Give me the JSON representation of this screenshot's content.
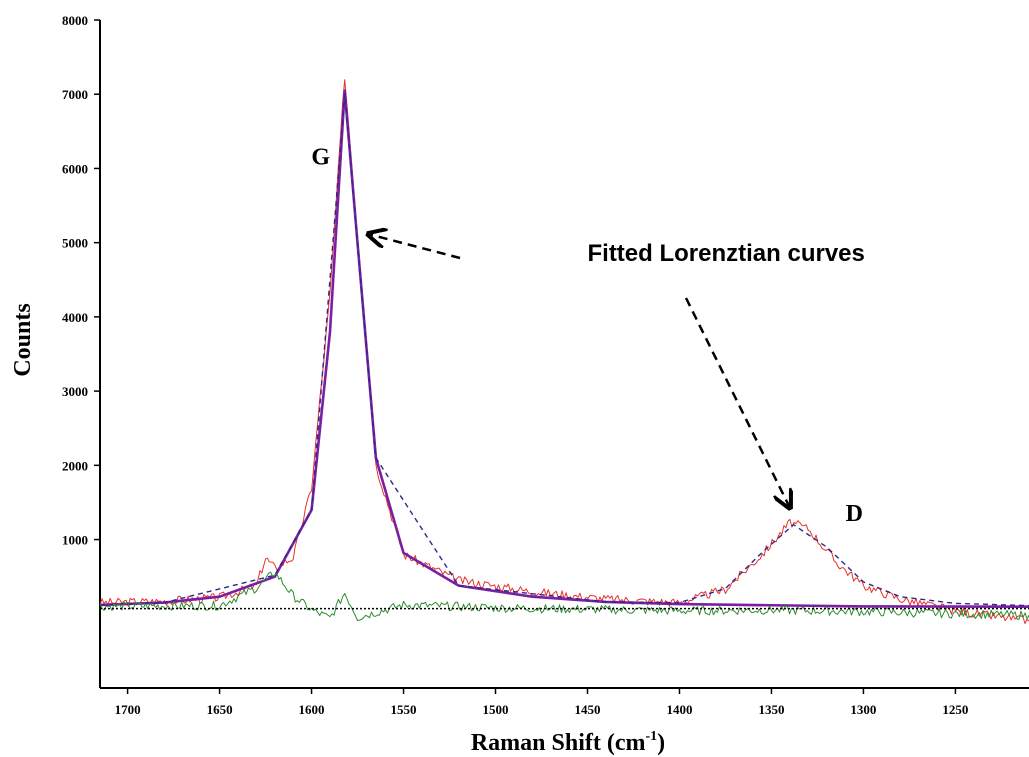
{
  "chart_data": {
    "type": "line",
    "title": "",
    "xlabel": "Raman Shift (cm",
    "xlabel_sup": "-1",
    "xlabel_close": ")",
    "ylabel": "Counts",
    "xlim": [
      1715,
      1210
    ],
    "ylim": [
      -1000,
      8000
    ],
    "x_reversed": true,
    "grid": false,
    "legend": "none",
    "x_ticks": [
      1700,
      1650,
      1600,
      1550,
      1500,
      1450,
      1400,
      1350,
      1300,
      1250
    ],
    "x_tick_labels": [
      "1700",
      "1650",
      "1600",
      "1550",
      "1500",
      "1450",
      "1400",
      "1350",
      "1300",
      "1250"
    ],
    "y_ticks": [
      1000,
      2000,
      3000,
      4000,
      5000,
      6000,
      7000,
      8000
    ],
    "y_tick_labels": [
      "1000",
      "2000",
      "3000",
      "4000",
      "5000",
      "6000",
      "7000",
      "8000"
    ],
    "series": [
      {
        "color": "#e8302a",
        "style": "noisy-solid",
        "values": [
          [
            1715,
            150
          ],
          [
            1680,
            170
          ],
          [
            1650,
            220
          ],
          [
            1630,
            380
          ],
          [
            1625,
            750
          ],
          [
            1620,
            620
          ],
          [
            1610,
            760
          ],
          [
            1600,
            1700
          ],
          [
            1590,
            4300
          ],
          [
            1582,
            7250
          ],
          [
            1575,
            5100
          ],
          [
            1565,
            2000
          ],
          [
            1550,
            800
          ],
          [
            1520,
            450
          ],
          [
            1480,
            300
          ],
          [
            1440,
            200
          ],
          [
            1400,
            150
          ],
          [
            1375,
            330
          ],
          [
            1355,
            800
          ],
          [
            1340,
            1230
          ],
          [
            1330,
            1150
          ],
          [
            1315,
            700
          ],
          [
            1300,
            380
          ],
          [
            1280,
            200
          ],
          [
            1250,
            40
          ],
          [
            1210,
            -100
          ]
        ]
      },
      {
        "color": "#7b1fa2",
        "style": "solid-thick",
        "values": [
          [
            1715,
            120
          ],
          [
            1680,
            150
          ],
          [
            1650,
            230
          ],
          [
            1620,
            500
          ],
          [
            1600,
            1400
          ],
          [
            1590,
            3800
          ],
          [
            1582,
            7050
          ],
          [
            1575,
            5000
          ],
          [
            1565,
            2100
          ],
          [
            1550,
            820
          ],
          [
            1520,
            380
          ],
          [
            1480,
            230
          ],
          [
            1440,
            160
          ],
          [
            1400,
            130
          ],
          [
            1300,
            100
          ],
          [
            1210,
            95
          ]
        ]
      },
      {
        "color": "#2a2a8a",
        "style": "dashed",
        "values": [
          [
            1715,
            120
          ],
          [
            1680,
            150
          ],
          [
            1620,
            520
          ],
          [
            1600,
            1400
          ],
          [
            1582,
            7000
          ],
          [
            1565,
            2100
          ],
          [
            1520,
            380
          ],
          [
            1440,
            160
          ],
          [
            1400,
            150
          ],
          [
            1375,
            340
          ],
          [
            1355,
            830
          ],
          [
            1338,
            1200
          ],
          [
            1320,
            900
          ],
          [
            1300,
            430
          ],
          [
            1280,
            230
          ],
          [
            1250,
            140
          ],
          [
            1210,
            110
          ]
        ]
      },
      {
        "color": "#2e8b2e",
        "style": "noisy-solid",
        "values": [
          [
            1715,
            100
          ],
          [
            1650,
            110
          ],
          [
            1630,
            350
          ],
          [
            1620,
            560
          ],
          [
            1610,
            240
          ],
          [
            1600,
            50
          ],
          [
            1590,
            -60
          ],
          [
            1582,
            280
          ],
          [
            1575,
            -50
          ],
          [
            1550,
            120
          ],
          [
            1500,
            80
          ],
          [
            1450,
            60
          ],
          [
            1400,
            40
          ],
          [
            1350,
            50
          ],
          [
            1300,
            30
          ],
          [
            1250,
            0
          ],
          [
            1210,
            -20
          ]
        ]
      },
      {
        "color": "#000000",
        "style": "dotted",
        "values": [
          [
            1715,
            70
          ],
          [
            1210,
            70
          ]
        ]
      }
    ],
    "annotations": [
      {
        "text": "G",
        "x": 1595,
        "y": 6050
      },
      {
        "text": "D",
        "x": 1305,
        "y": 1250
      },
      {
        "text": "Fitted Lorenztian curves",
        "x": 1450,
        "y": 4750
      }
    ]
  }
}
